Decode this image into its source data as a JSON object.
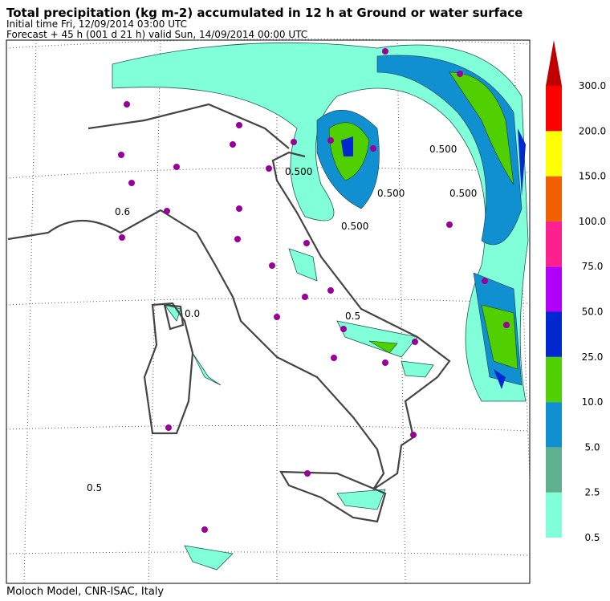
{
  "header": {
    "title": "Total precipitation (kg m-2) accumulated in  12 h at Ground or water surface",
    "initial_time": "Initial time  Fri, 12/09/2014  03:00 UTC",
    "forecast": "Forecast  +  45 h  (001 d 21 h)  valid Sun, 14/09/2014 00:00 UTC"
  },
  "map": {
    "contour_labels": [
      "0.5",
      "0.6",
      "0.500",
      "0.500",
      "0.500",
      "0.500",
      "0.500",
      "0.0",
      "0.5"
    ]
  },
  "colorbar": {
    "levels": [
      "0.5",
      "2.5",
      "5.0",
      "10.0",
      "25.0",
      "50.0",
      "75.0",
      "100.0",
      "150.0",
      "200.0",
      "300.0"
    ],
    "colors": [
      "#80ffd8",
      "#60b090",
      "#1090d0",
      "#50d000",
      "#0028d0",
      "#b000f8",
      "#ff2090",
      "#f06000",
      "#ffff00",
      "#ff0000",
      "#c00000"
    ]
  },
  "footer": {
    "credit": "Moloch Model, CNR-ISAC, Italy"
  }
}
